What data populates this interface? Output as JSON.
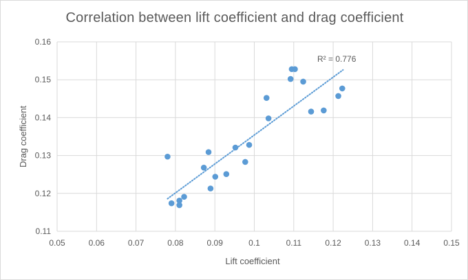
{
  "chart_data": {
    "type": "scatter",
    "title": "Correlation between lift coefficient and drag coefficient",
    "xlabel": "Lift coefficient",
    "ylabel": "Drag coefficient",
    "xlim": [
      0.05,
      0.15
    ],
    "ylim": [
      0.11,
      0.16
    ],
    "x_ticks": [
      "0.05",
      "0.06",
      "0.07",
      "0.08",
      "0.09",
      "0.1",
      "0.11",
      "0.12",
      "0.13",
      "0.14",
      "0.15"
    ],
    "y_ticks": [
      "0.11",
      "0.12",
      "0.13",
      "0.14",
      "0.15",
      "0.16"
    ],
    "grid": true,
    "marker_color": "#5b9bd5",
    "trendline": {
      "type": "linear",
      "style": "dotted",
      "color": "#5b9bd5",
      "r_squared_label": "R² = 0.776",
      "x_range": [
        0.078,
        0.1225
      ],
      "y_range": [
        0.1186,
        0.1526
      ]
    },
    "points": [
      {
        "x": 0.078,
        "y": 0.1297
      },
      {
        "x": 0.079,
        "y": 0.1174
      },
      {
        "x": 0.081,
        "y": 0.1181
      },
      {
        "x": 0.081,
        "y": 0.1169
      },
      {
        "x": 0.0822,
        "y": 0.1191
      },
      {
        "x": 0.0872,
        "y": 0.1268
      },
      {
        "x": 0.0884,
        "y": 0.1309
      },
      {
        "x": 0.0889,
        "y": 0.1213
      },
      {
        "x": 0.0901,
        "y": 0.1244
      },
      {
        "x": 0.0929,
        "y": 0.1251
      },
      {
        "x": 0.0952,
        "y": 0.1321
      },
      {
        "x": 0.0977,
        "y": 0.1283
      },
      {
        "x": 0.0987,
        "y": 0.1328
      },
      {
        "x": 0.1031,
        "y": 0.1452
      },
      {
        "x": 0.1036,
        "y": 0.1398
      },
      {
        "x": 0.1092,
        "y": 0.1502
      },
      {
        "x": 0.1095,
        "y": 0.1528
      },
      {
        "x": 0.1103,
        "y": 0.1528
      },
      {
        "x": 0.1124,
        "y": 0.1495
      },
      {
        "x": 0.1144,
        "y": 0.1416
      },
      {
        "x": 0.1176,
        "y": 0.1419
      },
      {
        "x": 0.1213,
        "y": 0.1457
      },
      {
        "x": 0.1223,
        "y": 0.1477
      }
    ]
  }
}
